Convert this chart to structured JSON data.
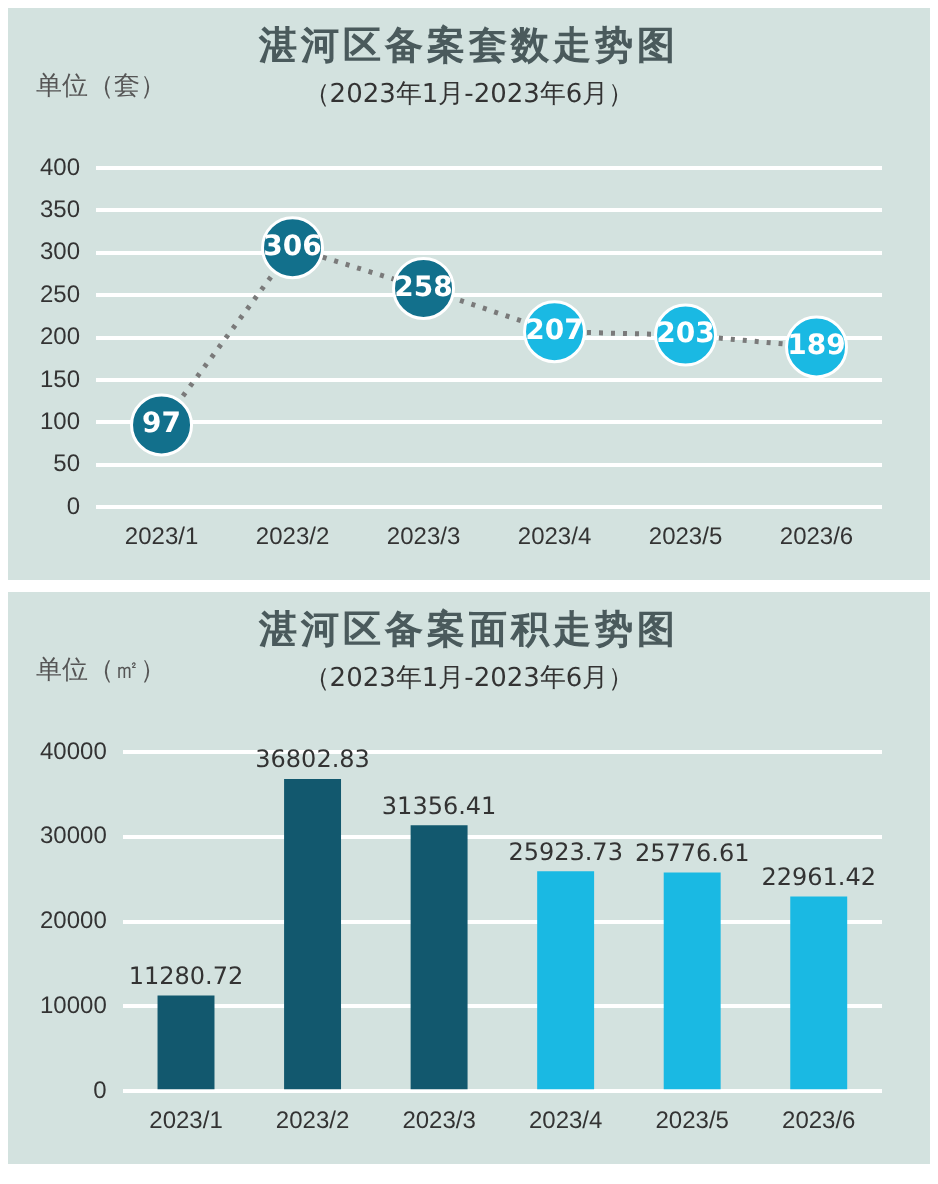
{
  "chart_data": [
    {
      "type": "line",
      "title": "湛河区备案套数走势图",
      "subtitle": "（2023年1月-2023年6月）",
      "ylabel": "单位（套）",
      "categories": [
        "2023/1",
        "2023/2",
        "2023/3",
        "2023/4",
        "2023/5",
        "2023/6"
      ],
      "series": [
        {
          "color": "#7a7a7a",
          "colors": [
            "#12708c",
            "#12708c",
            "#12708c",
            "#1ab9e3",
            "#1ab9e3",
            "#1ab9e3"
          ],
          "values": [
            97,
            306,
            258,
            207,
            203,
            189
          ]
        }
      ],
      "ylim": [
        0,
        400
      ],
      "yticks": [
        0,
        50,
        100,
        150,
        200,
        250,
        300,
        350,
        400
      ],
      "grid": "y",
      "data_labels": true,
      "marker": "circle",
      "line_style": "dotted"
    },
    {
      "type": "bar",
      "title": "湛河区备案面积走势图",
      "subtitle": "（2023年1月-2023年6月）",
      "ylabel": "单位（㎡）",
      "categories": [
        "2023/1",
        "2023/2",
        "2023/3",
        "2023/4",
        "2023/5",
        "2023/6"
      ],
      "values": [
        11280.72,
        36802.83,
        31356.41,
        25923.73,
        25776.61,
        22961.42
      ],
      "colors": [
        "#12586e",
        "#12586e",
        "#12586e",
        "#1ab9e3",
        "#1ab9e3",
        "#1ab9e3"
      ],
      "ylim": [
        0,
        40000
      ],
      "yticks": [
        0,
        10000,
        20000,
        30000,
        40000
      ],
      "grid": "y",
      "data_labels": true
    }
  ]
}
